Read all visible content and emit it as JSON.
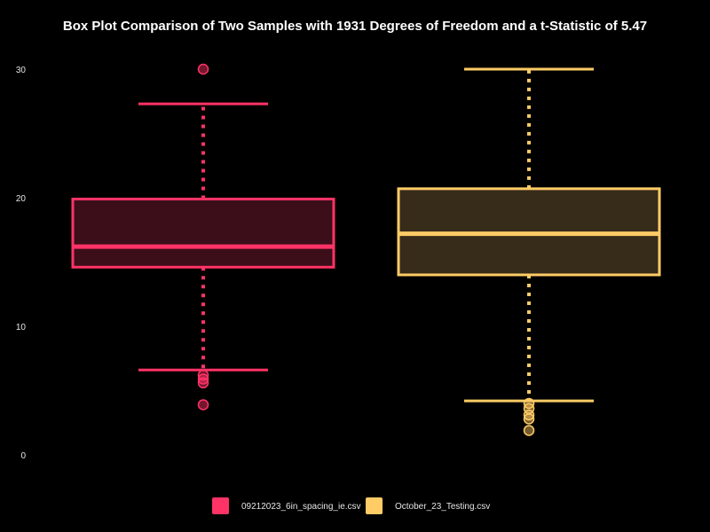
{
  "chart_data": {
    "type": "box",
    "title": "Box Plot Comparison of Two Samples with 1931 Degrees of Freedom and a t-Statistic of 5.47",
    "xlabel": "",
    "ylabel": "",
    "ylim": [
      0,
      30
    ],
    "yticks": [
      0,
      10,
      20,
      30
    ],
    "grid": false,
    "legend_position": "bottom",
    "series": [
      {
        "name": "09212023_6in_spacing_ie.csv",
        "color": "#ff3366",
        "fill": "#3b0e1a",
        "whisker_low": 6.6,
        "q1": 14.6,
        "median": 16.2,
        "q3": 19.9,
        "whisker_high": 27.3,
        "outliers": [
          30.0,
          6.2,
          5.9,
          5.6,
          3.9
        ]
      },
      {
        "name": "October_23_Testing.csv",
        "color": "#ffcc66",
        "fill": "#372b1a",
        "whisker_low": 4.2,
        "q1": 14.0,
        "median": 17.2,
        "q3": 20.7,
        "whisker_high": 30.0,
        "outliers": [
          4.0,
          3.6,
          3.1,
          2.8,
          1.9
        ]
      }
    ]
  }
}
